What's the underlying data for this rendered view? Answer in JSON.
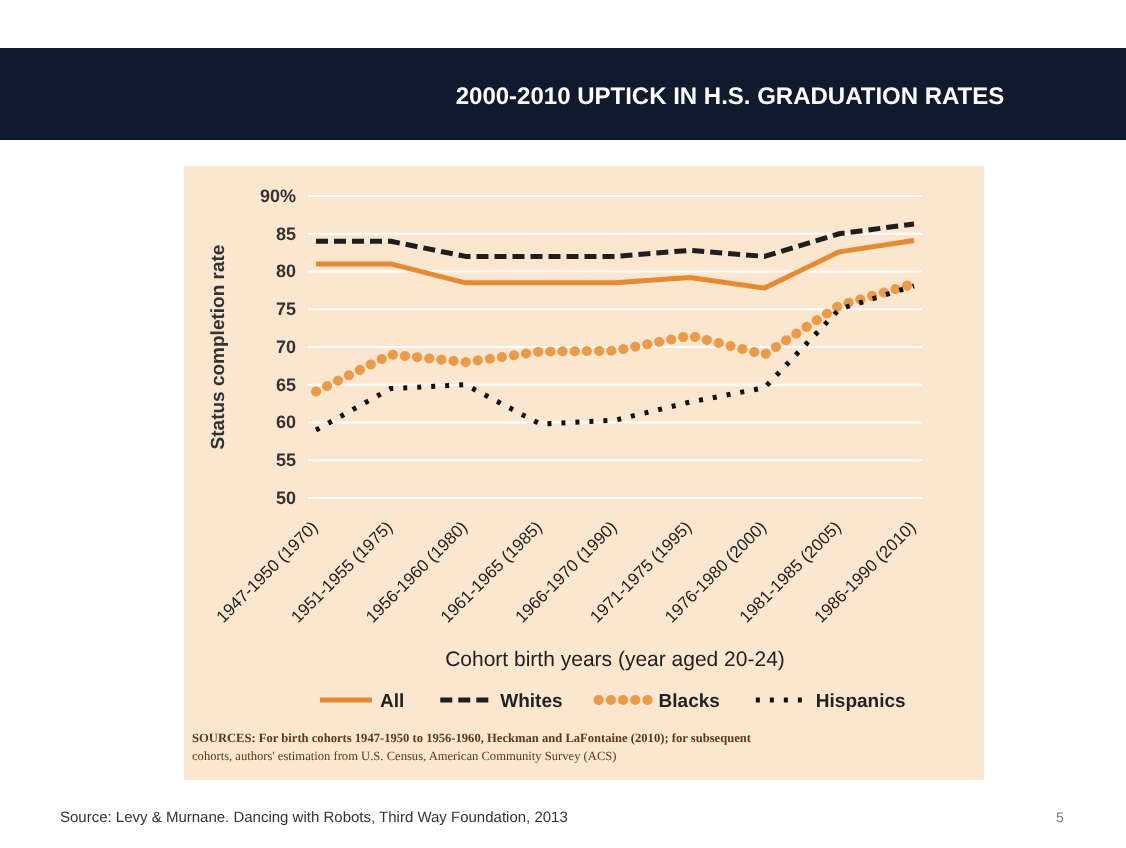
{
  "chart_data": {
    "type": "line",
    "title": "2000-2010 UPTICK IN H.S. GRADUATION RATES",
    "xlabel": "Cohort birth years (year aged 20-24)",
    "ylabel": "Status completion rate",
    "categories": [
      "1947-1950 (1970)",
      "1951-1955 (1975)",
      "1956-1960 (1980)",
      "1961-1965 (1985)",
      "1966-1970 (1990)",
      "1971-1975 (1995)",
      "1976-1980 (2000)",
      "1981-1985 (2005)",
      "1986-1990 (2010)"
    ],
    "ylim": [
      50,
      90
    ],
    "yticks": [
      50,
      55,
      60,
      65,
      70,
      75,
      80,
      85,
      {
        "value": 90,
        "label": "90%"
      }
    ],
    "grid": "y",
    "legend": "bottom",
    "series": [
      {
        "name": "All",
        "color": "#e8892d",
        "line_style": "solid",
        "values": [
          81,
          81,
          78.5,
          78.5,
          78.5,
          79.2,
          77.8,
          82.6,
          84.1
        ]
      },
      {
        "name": "Whites",
        "color": "#1e1e1e",
        "line_style": "dashed",
        "values": [
          84,
          84,
          82,
          82,
          82,
          82.8,
          82,
          85,
          86.3
        ]
      },
      {
        "name": "Blacks",
        "color": "#ec9a45",
        "line_style": "dotted",
        "values": [
          64.1,
          69,
          68,
          69.4,
          69.5,
          71.5,
          69,
          75.5,
          78.4
        ]
      },
      {
        "name": "Hispanics",
        "color": "#111111",
        "line_style": "dotted",
        "values": [
          59,
          64.5,
          65,
          59.8,
          60.3,
          62.7,
          64.6,
          75,
          78.1
        ]
      }
    ],
    "annotations": [
      "SOURCES: For birth cohorts 1947-1950 to 1956-1960, Heckman and LaFontaine (2010); for subsequent cohorts, authors' estimation from U.S. Census, American Community Survey (ACS)",
      "Source: Levy & Murnane. Dancing with Robots, Third Way Foundation, 2013",
      "5"
    ]
  }
}
